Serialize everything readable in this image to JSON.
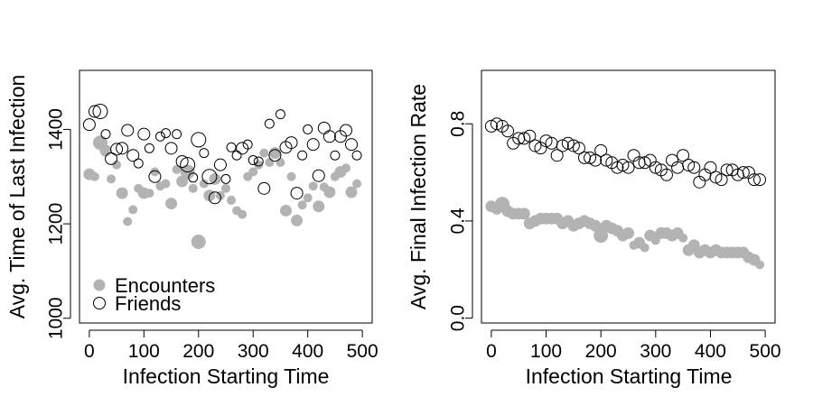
{
  "chart_data": [
    {
      "type": "scatter",
      "title": "",
      "xlabel": "Infection Starting Time",
      "ylabel": "Avg. Time of Last Infection",
      "xlim": [
        -18,
        518
      ],
      "ylim": [
        990,
        1525
      ],
      "xticks": [
        0,
        100,
        200,
        300,
        400,
        500
      ],
      "xtick_labels": [
        "0",
        "100",
        "200",
        "300",
        "400",
        "500"
      ],
      "yticks": [
        1000,
        1200,
        1400
      ],
      "ytick_labels": [
        "1000",
        "1200",
        "1400"
      ],
      "legend": {
        "position": "bottom-left",
        "entries": [
          {
            "label": "Encounters",
            "marker": "filled-circle",
            "color": "#b3b3b3"
          },
          {
            "label": "Friends",
            "marker": "open-circle",
            "color": "#000000"
          }
        ]
      },
      "series": [
        {
          "name": "Encounters",
          "marker": "filled",
          "color": "#b3b3b3",
          "x": [
            0,
            10,
            20,
            30,
            40,
            50,
            60,
            70,
            80,
            90,
            100,
            110,
            120,
            130,
            140,
            150,
            160,
            170,
            180,
            190,
            200,
            210,
            220,
            230,
            240,
            250,
            260,
            270,
            280,
            290,
            300,
            310,
            320,
            330,
            340,
            350,
            360,
            370,
            380,
            390,
            400,
            410,
            420,
            430,
            440,
            450,
            460,
            470,
            480,
            490
          ],
          "y": [
            1305,
            1300,
            1372,
            1355,
            1295,
            1325,
            1265,
            1205,
            1230,
            1275,
            1265,
            1265,
            1310,
            1280,
            1285,
            1243,
            1315,
            1290,
            1310,
            1275,
            1162,
            1285,
            1260,
            1295,
            1260,
            1275,
            1250,
            1228,
            1220,
            1300,
            1310,
            1325,
            1350,
            1330,
            1350,
            1330,
            1228,
            1300,
            1207,
            1240,
            1255,
            1280,
            1237,
            1278,
            1267,
            1300,
            1310,
            1318,
            1267,
            1285
          ],
          "size": [
            2,
            1,
            3,
            2,
            1,
            1,
            2,
            1,
            1,
            1,
            2,
            1,
            1,
            1,
            1,
            2,
            1,
            2,
            3,
            1,
            3,
            1,
            2,
            2,
            1,
            1,
            1,
            1,
            1,
            1,
            1,
            1,
            1,
            1,
            2,
            1,
            2,
            1,
            2,
            1,
            1,
            1,
            2,
            1,
            2,
            1,
            2,
            1,
            2,
            1
          ]
        },
        {
          "name": "Friends",
          "marker": "open",
          "color": "#000000",
          "x": [
            0,
            10,
            20,
            30,
            40,
            50,
            60,
            70,
            80,
            90,
            100,
            110,
            120,
            130,
            140,
            150,
            160,
            170,
            180,
            190,
            200,
            210,
            220,
            230,
            240,
            250,
            260,
            270,
            280,
            290,
            300,
            310,
            320,
            330,
            340,
            350,
            360,
            370,
            380,
            390,
            400,
            410,
            420,
            430,
            440,
            450,
            460,
            470,
            480,
            490
          ],
          "y": [
            1410,
            1438,
            1438,
            1390,
            1338,
            1358,
            1360,
            1398,
            1345,
            1328,
            1390,
            1360,
            1300,
            1385,
            1392,
            1360,
            1390,
            1332,
            1325,
            1298,
            1378,
            1350,
            1300,
            1255,
            1325,
            1295,
            1362,
            1345,
            1360,
            1368,
            1335,
            1332,
            1275,
            1412,
            1345,
            1432,
            1362,
            1372,
            1265,
            1345,
            1400,
            1368,
            1302,
            1403,
            1385,
            1345,
            1385,
            1398,
            1368,
            1345
          ],
          "size": [
            2,
            2,
            3,
            1,
            2,
            2,
            2,
            2,
            2,
            1,
            2,
            1,
            2,
            1,
            1,
            2,
            1,
            2,
            3,
            1,
            3,
            1,
            3,
            2,
            2,
            1,
            1,
            1,
            2,
            1,
            1,
            1,
            2,
            1,
            2,
            1,
            2,
            2,
            2,
            1,
            1,
            2,
            2,
            2,
            2,
            1,
            2,
            2,
            2,
            1
          ]
        }
      ]
    },
    {
      "type": "scatter",
      "title": "",
      "xlabel": "Infection Starting Time",
      "ylabel": "Avg. Final Infection Rate",
      "xlim": [
        -18,
        518
      ],
      "ylim": [
        -0.02,
        1.02
      ],
      "xticks": [
        0,
        100,
        200,
        300,
        400,
        500
      ],
      "xtick_labels": [
        "0",
        "100",
        "200",
        "300",
        "400",
        "500"
      ],
      "yticks": [
        0.0,
        0.4,
        0.8
      ],
      "ytick_labels": [
        "0.0",
        "0.4",
        "0.8"
      ],
      "series": [
        {
          "name": "Encounters",
          "marker": "filled",
          "color": "#b3b3b3",
          "x": [
            0,
            10,
            20,
            30,
            40,
            50,
            60,
            70,
            80,
            90,
            100,
            110,
            120,
            130,
            140,
            150,
            160,
            170,
            180,
            190,
            200,
            210,
            220,
            230,
            240,
            250,
            260,
            270,
            280,
            290,
            300,
            310,
            320,
            330,
            340,
            350,
            360,
            370,
            380,
            390,
            400,
            410,
            420,
            430,
            440,
            450,
            460,
            470,
            480,
            490
          ],
          "y": [
            0.46,
            0.45,
            0.47,
            0.44,
            0.43,
            0.43,
            0.43,
            0.39,
            0.4,
            0.41,
            0.41,
            0.41,
            0.41,
            0.39,
            0.4,
            0.38,
            0.39,
            0.4,
            0.39,
            0.38,
            0.34,
            0.38,
            0.37,
            0.36,
            0.34,
            0.35,
            0.3,
            0.31,
            0.29,
            0.34,
            0.32,
            0.35,
            0.35,
            0.34,
            0.35,
            0.33,
            0.28,
            0.3,
            0.27,
            0.28,
            0.27,
            0.28,
            0.27,
            0.27,
            0.27,
            0.27,
            0.27,
            0.25,
            0.24,
            0.22
          ],
          "size": [
            2,
            2,
            3,
            2,
            2,
            2,
            2,
            2,
            2,
            2,
            2,
            2,
            2,
            2,
            2,
            2,
            2,
            2,
            2,
            2,
            3,
            2,
            2,
            2,
            2,
            2,
            1,
            2,
            1,
            2,
            1,
            2,
            2,
            2,
            2,
            1,
            2,
            2,
            2,
            2,
            2,
            2,
            2,
            2,
            2,
            2,
            2,
            2,
            2,
            1
          ]
        },
        {
          "name": "Friends",
          "marker": "open",
          "color": "#000000",
          "x": [
            0,
            10,
            20,
            30,
            40,
            50,
            60,
            70,
            80,
            90,
            100,
            110,
            120,
            130,
            140,
            150,
            160,
            170,
            180,
            190,
            200,
            210,
            220,
            230,
            240,
            250,
            260,
            270,
            280,
            290,
            300,
            310,
            320,
            330,
            340,
            350,
            360,
            370,
            380,
            390,
            400,
            410,
            420,
            430,
            440,
            450,
            460,
            470,
            480,
            490
          ],
          "y": [
            0.79,
            0.8,
            0.79,
            0.77,
            0.72,
            0.74,
            0.74,
            0.75,
            0.71,
            0.7,
            0.73,
            0.72,
            0.67,
            0.71,
            0.72,
            0.71,
            0.7,
            0.66,
            0.66,
            0.65,
            0.69,
            0.65,
            0.64,
            0.62,
            0.63,
            0.62,
            0.67,
            0.64,
            0.64,
            0.65,
            0.62,
            0.61,
            0.59,
            0.65,
            0.62,
            0.67,
            0.63,
            0.62,
            0.56,
            0.59,
            0.62,
            0.58,
            0.57,
            0.61,
            0.61,
            0.59,
            0.6,
            0.6,
            0.57,
            0.57
          ]
        }
      ]
    }
  ]
}
